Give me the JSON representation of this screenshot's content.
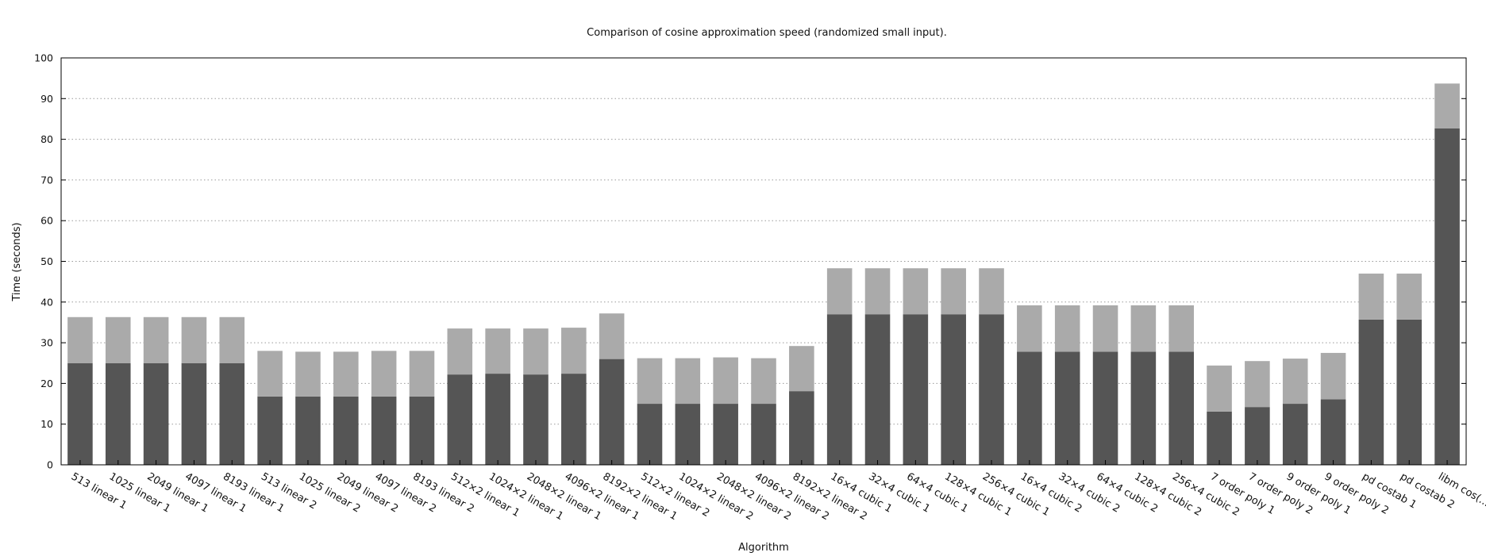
{
  "chart_data": {
    "type": "bar",
    "stacked": true,
    "title": "Comparison of cosine approximation speed (randomized small input).",
    "xlabel": "Algorithm",
    "ylabel": "Time (seconds)",
    "ylim": [
      0,
      100
    ],
    "yticks": [
      0,
      10,
      20,
      30,
      40,
      50,
      60,
      70,
      80,
      90,
      100
    ],
    "grid": "horizontal-dotted",
    "colors": {
      "dark": "#555555",
      "light": "#aaaaaa",
      "grid": "#999999",
      "axis": "#000000"
    },
    "categories": [
      "513 linear 1",
      "1025 linear 1",
      "2049 linear 1",
      "4097 linear 1",
      "8193 linear 1",
      "513 linear 2",
      "1025 linear 2",
      "2049 linear 2",
      "4097 linear 2",
      "8193 linear 2",
      "512×2 linear 1",
      "1024×2 linear 1",
      "2048×2 linear 1",
      "4096×2 linear 1",
      "8192×2 linear 1",
      "512×2 linear 2",
      "1024×2 linear 2",
      "2048×2 linear 2",
      "4096×2 linear 2",
      "8192×2 linear 2",
      "16×4 cubic 1",
      "32×4 cubic 1",
      "64×4 cubic 1",
      "128×4 cubic 1",
      "256×4 cubic 1",
      "16×4 cubic 2",
      "32×4 cubic 2",
      "64×4 cubic 2",
      "128×4 cubic 2",
      "256×4 cubic 2",
      "7 order poly 1",
      "7 order poly 2",
      "9 order poly 1",
      "9 order poly 2",
      "pd costab 1",
      "pd costab 2",
      "libm cos(..."
    ],
    "series": [
      {
        "color": "#555555",
        "values": [
          25,
          25,
          25,
          25,
          25,
          16.8,
          16.8,
          16.8,
          16.8,
          16.8,
          22.2,
          22.4,
          22.2,
          22.4,
          26,
          15,
          15,
          15,
          15,
          18.1,
          37,
          37,
          37,
          37,
          37,
          27.8,
          27.8,
          27.8,
          27.8,
          27.8,
          13.1,
          14.2,
          15,
          16.1,
          35.7,
          35.7,
          82.7
        ]
      },
      {
        "color": "#aaaaaa",
        "values": [
          11.3,
          11.3,
          11.3,
          11.3,
          11.3,
          11.2,
          11.0,
          11.0,
          11.2,
          11.2,
          11.3,
          11.1,
          11.3,
          11.3,
          11.2,
          11.2,
          11.2,
          11.4,
          11.2,
          11.1,
          11.3,
          11.3,
          11.3,
          11.3,
          11.3,
          11.4,
          11.4,
          11.4,
          11.4,
          11.4,
          11.3,
          11.3,
          11.1,
          11.4,
          11.3,
          11.3,
          11.0
        ]
      }
    ]
  }
}
